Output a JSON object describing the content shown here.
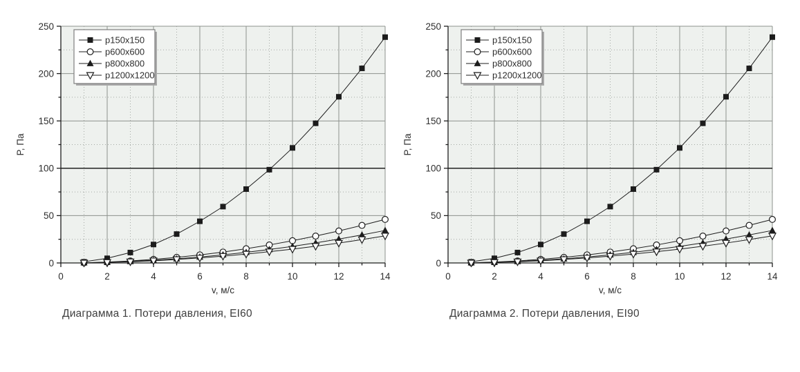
{
  "page": {
    "background": "#ffffff"
  },
  "chart_data": [
    {
      "type": "line",
      "caption": "Диаграмма 1. Потери давления, EI60",
      "xlabel": "v, м/с",
      "ylabel": "P, Па",
      "xlim": [
        0,
        14
      ],
      "ylim": [
        0,
        250
      ],
      "x_ticks_labeled": [
        0,
        2,
        4,
        6,
        8,
        10,
        12,
        14
      ],
      "x_ticks_minor": [
        1,
        3,
        5,
        7,
        9,
        11,
        13
      ],
      "y_ticks_labeled": [
        0,
        50,
        100,
        150,
        200,
        250
      ],
      "y_ticks_minor": [
        25,
        75,
        125,
        175,
        225
      ],
      "grid": "major-solid, minor-dotted",
      "emphasis_gridline_y": 100,
      "legend_position": "top-left",
      "x": [
        1,
        2,
        3,
        4,
        5,
        6,
        7,
        8,
        9,
        10,
        11,
        12,
        13,
        14
      ],
      "series": [
        {
          "name": "p150x150",
          "marker": "filled-square",
          "values": [
            1.2,
            4.9,
            11,
            19.5,
            30.5,
            44,
            59.5,
            78,
            98.5,
            121.5,
            147.5,
            175.5,
            205.5,
            238.5
          ]
        },
        {
          "name": "p600x600",
          "marker": "open-circle",
          "values": [
            0.2,
            0.9,
            2.1,
            3.8,
            5.9,
            8.5,
            11.5,
            15,
            19,
            23.5,
            28.4,
            33.8,
            39.7,
            46
          ]
        },
        {
          "name": "p800x800",
          "marker": "filled-triangle-up",
          "values": [
            0.2,
            0.7,
            1.6,
            2.8,
            4.4,
            6.3,
            8.6,
            11.2,
            14.2,
            17.5,
            21.2,
            25.2,
            29.6,
            34.3
          ]
        },
        {
          "name": "p1200x1200",
          "marker": "open-triangle-down",
          "values": [
            0.1,
            0.6,
            1.3,
            2.3,
            3.7,
            5.3,
            7.2,
            9.4,
            11.9,
            14.6,
            17.7,
            21,
            24.7,
            28.6
          ]
        }
      ],
      "colors": {
        "plot_background": "#eef1ee",
        "grid_major": "#8c918c",
        "grid_minor": "#a3a8a3",
        "axis": "#1c1c1c",
        "emphasis_line": "#111111",
        "series": "#1c1c1c",
        "legend_border": "#7d7d7d",
        "legend_shadow": "#a9a9a9",
        "text": "#2e2e2e"
      }
    },
    {
      "type": "line",
      "caption": "Диаграмма 2. Потери давления, EI90",
      "xlabel": "v, м/с",
      "ylabel": "P, Па",
      "xlim": [
        0,
        14
      ],
      "ylim": [
        0,
        250
      ],
      "x_ticks_labeled": [
        0,
        2,
        4,
        6,
        8,
        10,
        12,
        14
      ],
      "x_ticks_minor": [
        1,
        3,
        5,
        7,
        9,
        11,
        13
      ],
      "y_ticks_labeled": [
        0,
        50,
        100,
        150,
        200,
        250
      ],
      "y_ticks_minor": [
        25,
        75,
        125,
        175,
        225
      ],
      "grid": "major-solid, minor-dotted",
      "emphasis_gridline_y": 100,
      "legend_position": "top-left",
      "x": [
        1,
        2,
        3,
        4,
        5,
        6,
        7,
        8,
        9,
        10,
        11,
        12,
        13,
        14
      ],
      "series": [
        {
          "name": "p150x150",
          "marker": "filled-square",
          "values": [
            1.2,
            4.9,
            11,
            19.5,
            30.5,
            44,
            59.5,
            78,
            98.5,
            121.5,
            147.5,
            175.5,
            205.5,
            238.5
          ]
        },
        {
          "name": "p600x600",
          "marker": "open-circle",
          "values": [
            0.2,
            0.9,
            2.1,
            3.8,
            5.9,
            8.5,
            11.5,
            15,
            19,
            23.5,
            28.4,
            33.8,
            39.7,
            46
          ]
        },
        {
          "name": "p800x800",
          "marker": "filled-triangle-up",
          "values": [
            0.2,
            0.7,
            1.6,
            2.8,
            4.4,
            6.3,
            8.6,
            11.2,
            14.2,
            17.5,
            21.2,
            25.2,
            29.6,
            34.3
          ]
        },
        {
          "name": "p1200x1200",
          "marker": "open-triangle-down",
          "values": [
            0.1,
            0.6,
            1.3,
            2.3,
            3.7,
            5.3,
            7.2,
            9.4,
            11.9,
            14.6,
            17.7,
            21,
            24.7,
            28.6
          ]
        }
      ],
      "colors": {
        "plot_background": "#eef1ee",
        "grid_major": "#8c918c",
        "grid_minor": "#a3a8a3",
        "axis": "#1c1c1c",
        "emphasis_line": "#111111",
        "series": "#1c1c1c",
        "legend_border": "#7d7d7d",
        "legend_shadow": "#a9a9a9",
        "text": "#2e2e2e"
      }
    }
  ]
}
